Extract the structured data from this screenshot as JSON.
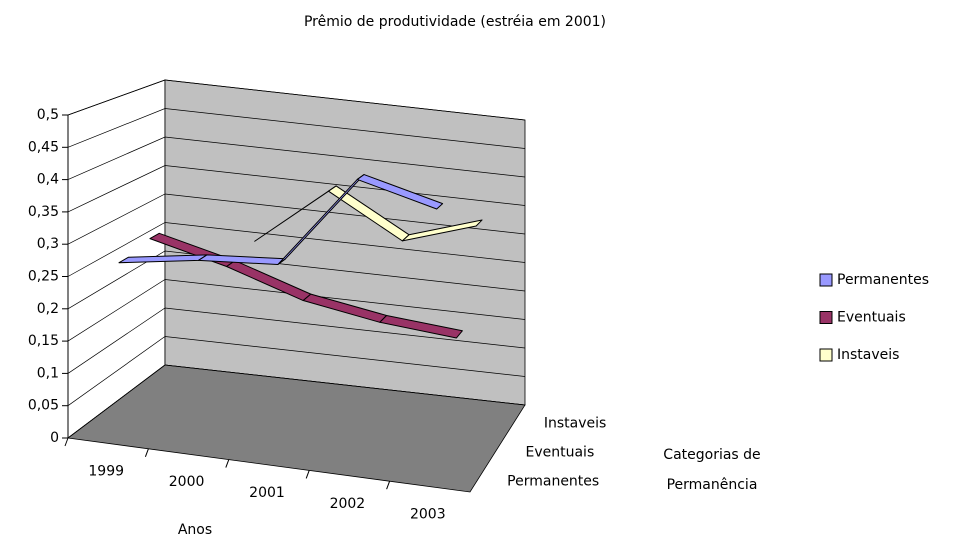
{
  "chart_data": {
    "type": "line3d",
    "title": "Prêmio de produtividade (estréia em 2001)",
    "categories": [
      "1999",
      "2000",
      "2001",
      "2002",
      "2003"
    ],
    "series": [
      {
        "name": "Permanentes",
        "color": "#9999ff",
        "values": [
          0.27,
          0.29,
          0.3,
          0.45,
          0.42
        ]
      },
      {
        "name": "Eventuais",
        "color": "#993366",
        "values": [
          0.28,
          0.25,
          0.21,
          0.19,
          0.18
        ]
      },
      {
        "name": "Instaveis",
        "color": "#ffffcc",
        "values": [
          null,
          0.26,
          0.36,
          0.29,
          0.33
        ]
      }
    ],
    "depth_categories": [
      "Permanentes",
      "Eventuais",
      "Instaveis"
    ],
    "ylim": [
      0,
      0.5
    ],
    "yticks": [
      {
        "value": 0,
        "label": "0"
      },
      {
        "value": 0.05,
        "label": "0,05"
      },
      {
        "value": 0.1,
        "label": "0,1"
      },
      {
        "value": 0.15,
        "label": "0,15"
      },
      {
        "value": 0.2,
        "label": "0,2"
      },
      {
        "value": 0.25,
        "label": "0,25"
      },
      {
        "value": 0.3,
        "label": "0,3"
      },
      {
        "value": 0.35,
        "label": "0,35"
      },
      {
        "value": 0.4,
        "label": "0,4"
      },
      {
        "value": 0.45,
        "label": "0,45"
      },
      {
        "value": 0.5,
        "label": "0,5"
      }
    ],
    "grid": true,
    "x_axis_title": "Anos",
    "depth_axis_title": [
      "Categorias de",
      "Permanência"
    ],
    "legend": "right"
  }
}
